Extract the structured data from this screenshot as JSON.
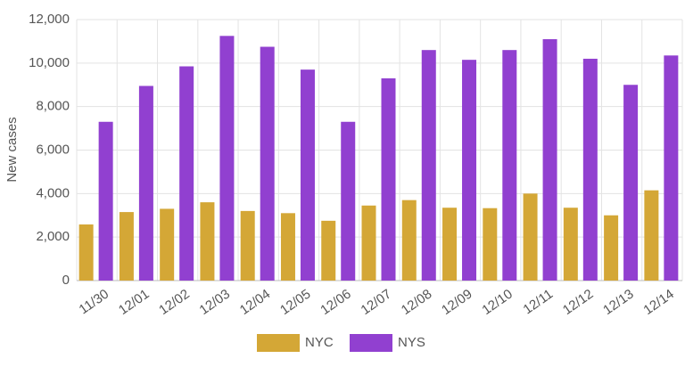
{
  "chart_data": {
    "type": "bar",
    "y_label": "New cases",
    "categories": [
      "11/30",
      "12/01",
      "12/02",
      "12/03",
      "12/04",
      "12/05",
      "12/06",
      "12/07",
      "12/08",
      "12/09",
      "12/10",
      "12/11",
      "12/12",
      "12/13",
      "12/14"
    ],
    "series": [
      {
        "name": "NYC",
        "color": "#d4a736",
        "values": [
          2580,
          3150,
          3300,
          3600,
          3200,
          3100,
          2750,
          3450,
          3700,
          3350,
          3330,
          4000,
          3350,
          3000,
          4150
        ]
      },
      {
        "name": "NYS",
        "color": "#9140d0",
        "values": [
          7300,
          8950,
          9850,
          11250,
          10750,
          9700,
          7300,
          9300,
          10600,
          10150,
          10600,
          11100,
          10200,
          9000,
          10350
        ]
      }
    ],
    "ylim": [
      0,
      12000
    ],
    "yticks": [
      0,
      {
        "value": 2000,
        "label": "2,000"
      },
      {
        "value": 4000,
        "label": "4,000"
      },
      {
        "value": 6000,
        "label": "6,000"
      },
      {
        "value": 8000,
        "label": "8,000"
      },
      {
        "value": 10000,
        "label": "10,000"
      },
      {
        "value": 12000,
        "label": "12,000"
      }
    ],
    "grid": true,
    "legend": "bottom"
  }
}
